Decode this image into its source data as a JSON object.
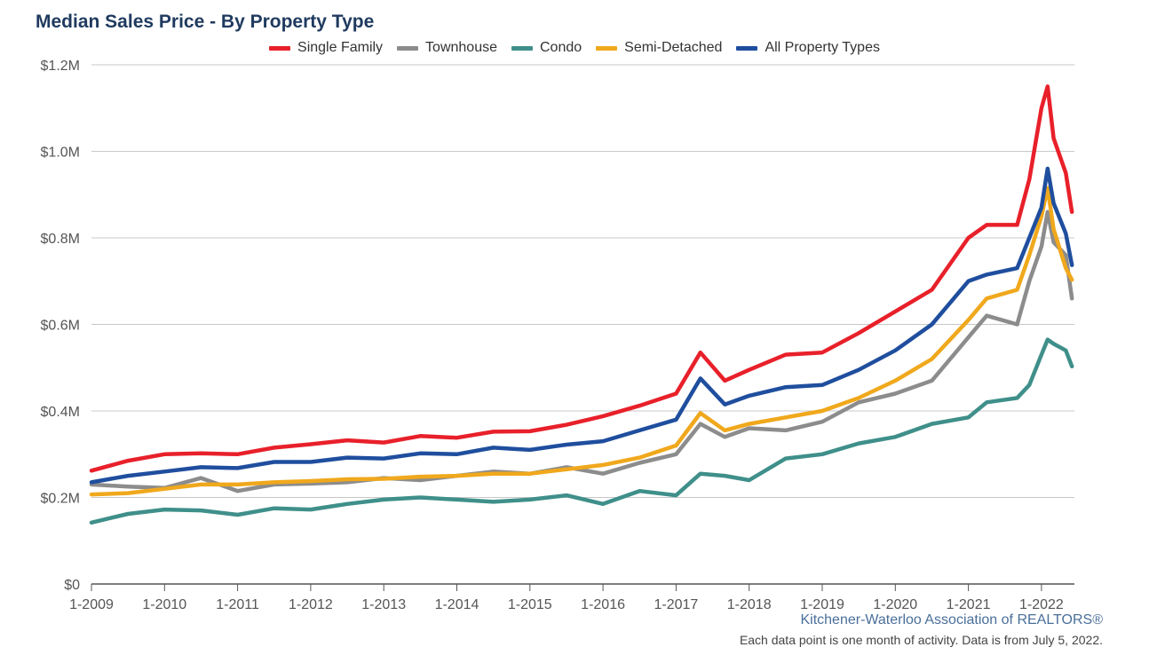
{
  "chart_data": {
    "type": "line",
    "title": "Median Sales Price - By Property Type",
    "y_ticks": [
      "$0",
      "$0.2M",
      "$0.4M",
      "$0.6M",
      "$0.8M",
      "$1.0M",
      "$1.2M"
    ],
    "y_tick_values": [
      0,
      200000,
      400000,
      600000,
      800000,
      1000000,
      1200000
    ],
    "ylim": [
      0,
      1200000
    ],
    "x_ticks": [
      "1-2009",
      "1-2010",
      "1-2011",
      "1-2012",
      "1-2013",
      "1-2014",
      "1-2015",
      "1-2016",
      "1-2017",
      "1-2018",
      "1-2019",
      "1-2020",
      "1-2021",
      "1-2022"
    ],
    "x_start": "2009-01",
    "x_end": "2022-06",
    "grid": true,
    "legend_position": "top",
    "series": [
      {
        "name": "Single Family",
        "color": "#e8202a",
        "points": [
          [
            "2009-01",
            262000
          ],
          [
            "2009-07",
            285000
          ],
          [
            "2010-01",
            300000
          ],
          [
            "2010-07",
            302000
          ],
          [
            "2011-01",
            300000
          ],
          [
            "2011-07",
            315000
          ],
          [
            "2012-01",
            323000
          ],
          [
            "2012-07",
            332000
          ],
          [
            "2013-01",
            327000
          ],
          [
            "2013-07",
            342000
          ],
          [
            "2014-01",
            338000
          ],
          [
            "2014-07",
            352000
          ],
          [
            "2015-01",
            353000
          ],
          [
            "2015-07",
            368000
          ],
          [
            "2016-01",
            388000
          ],
          [
            "2016-07",
            412000
          ],
          [
            "2017-01",
            440000
          ],
          [
            "2017-05",
            535000
          ],
          [
            "2017-09",
            470000
          ],
          [
            "2018-01",
            495000
          ],
          [
            "2018-07",
            530000
          ],
          [
            "2019-01",
            535000
          ],
          [
            "2019-07",
            580000
          ],
          [
            "2020-01",
            630000
          ],
          [
            "2020-07",
            680000
          ],
          [
            "2021-01",
            800000
          ],
          [
            "2021-04",
            830000
          ],
          [
            "2021-09",
            830000
          ],
          [
            "2021-11",
            935000
          ],
          [
            "2022-01",
            1100000
          ],
          [
            "2022-02",
            1150000
          ],
          [
            "2022-03",
            1030000
          ],
          [
            "2022-05",
            950000
          ],
          [
            "2022-06",
            860000
          ]
        ]
      },
      {
        "name": "Townhouse",
        "color": "#8c8c8c",
        "points": [
          [
            "2009-01",
            230000
          ],
          [
            "2009-07",
            225000
          ],
          [
            "2010-01",
            222000
          ],
          [
            "2010-07",
            245000
          ],
          [
            "2011-01",
            215000
          ],
          [
            "2011-07",
            230000
          ],
          [
            "2012-01",
            232000
          ],
          [
            "2012-07",
            235000
          ],
          [
            "2013-01",
            245000
          ],
          [
            "2013-07",
            240000
          ],
          [
            "2014-01",
            250000
          ],
          [
            "2014-07",
            260000
          ],
          [
            "2015-01",
            255000
          ],
          [
            "2015-07",
            270000
          ],
          [
            "2016-01",
            255000
          ],
          [
            "2016-07",
            280000
          ],
          [
            "2017-01",
            300000
          ],
          [
            "2017-05",
            370000
          ],
          [
            "2017-09",
            340000
          ],
          [
            "2018-01",
            360000
          ],
          [
            "2018-07",
            355000
          ],
          [
            "2019-01",
            375000
          ],
          [
            "2019-07",
            420000
          ],
          [
            "2020-01",
            440000
          ],
          [
            "2020-07",
            470000
          ],
          [
            "2021-01",
            570000
          ],
          [
            "2021-04",
            620000
          ],
          [
            "2021-09",
            600000
          ],
          [
            "2021-11",
            700000
          ],
          [
            "2022-01",
            780000
          ],
          [
            "2022-02",
            860000
          ],
          [
            "2022-03",
            790000
          ],
          [
            "2022-05",
            760000
          ],
          [
            "2022-06",
            660000
          ]
        ]
      },
      {
        "name": "Condo",
        "color": "#3f8f8a",
        "points": [
          [
            "2009-01",
            142000
          ],
          [
            "2009-07",
            162000
          ],
          [
            "2010-01",
            172000
          ],
          [
            "2010-07",
            170000
          ],
          [
            "2011-01",
            160000
          ],
          [
            "2011-07",
            175000
          ],
          [
            "2012-01",
            172000
          ],
          [
            "2012-07",
            185000
          ],
          [
            "2013-01",
            195000
          ],
          [
            "2013-07",
            200000
          ],
          [
            "2014-01",
            195000
          ],
          [
            "2014-07",
            190000
          ],
          [
            "2015-01",
            195000
          ],
          [
            "2015-07",
            205000
          ],
          [
            "2016-01",
            185000
          ],
          [
            "2016-07",
            215000
          ],
          [
            "2017-01",
            205000
          ],
          [
            "2017-05",
            255000
          ],
          [
            "2017-09",
            250000
          ],
          [
            "2018-01",
            240000
          ],
          [
            "2018-07",
            290000
          ],
          [
            "2019-01",
            300000
          ],
          [
            "2019-07",
            325000
          ],
          [
            "2020-01",
            340000
          ],
          [
            "2020-07",
            370000
          ],
          [
            "2021-01",
            385000
          ],
          [
            "2021-04",
            420000
          ],
          [
            "2021-09",
            430000
          ],
          [
            "2021-11",
            460000
          ],
          [
            "2022-01",
            530000
          ],
          [
            "2022-02",
            565000
          ],
          [
            "2022-03",
            555000
          ],
          [
            "2022-05",
            540000
          ],
          [
            "2022-06",
            503000
          ]
        ]
      },
      {
        "name": "Semi-Detached",
        "color": "#f0a81c",
        "points": [
          [
            "2009-01",
            207000
          ],
          [
            "2009-07",
            210000
          ],
          [
            "2010-01",
            220000
          ],
          [
            "2010-07",
            230000
          ],
          [
            "2011-01",
            230000
          ],
          [
            "2011-07",
            235000
          ],
          [
            "2012-01",
            238000
          ],
          [
            "2012-07",
            242000
          ],
          [
            "2013-01",
            243000
          ],
          [
            "2013-07",
            248000
          ],
          [
            "2014-01",
            250000
          ],
          [
            "2014-07",
            255000
          ],
          [
            "2015-01",
            255000
          ],
          [
            "2015-07",
            265000
          ],
          [
            "2016-01",
            275000
          ],
          [
            "2016-07",
            292000
          ],
          [
            "2017-01",
            320000
          ],
          [
            "2017-05",
            395000
          ],
          [
            "2017-09",
            355000
          ],
          [
            "2018-01",
            370000
          ],
          [
            "2018-07",
            385000
          ],
          [
            "2019-01",
            400000
          ],
          [
            "2019-07",
            430000
          ],
          [
            "2020-01",
            470000
          ],
          [
            "2020-07",
            520000
          ],
          [
            "2021-01",
            610000
          ],
          [
            "2021-04",
            660000
          ],
          [
            "2021-09",
            680000
          ],
          [
            "2021-11",
            760000
          ],
          [
            "2022-01",
            850000
          ],
          [
            "2022-02",
            915000
          ],
          [
            "2022-03",
            820000
          ],
          [
            "2022-05",
            730000
          ],
          [
            "2022-06",
            703000
          ]
        ]
      },
      {
        "name": "All Property Types",
        "color": "#1f4e9e",
        "points": [
          [
            "2009-01",
            235000
          ],
          [
            "2009-07",
            250000
          ],
          [
            "2010-01",
            260000
          ],
          [
            "2010-07",
            270000
          ],
          [
            "2011-01",
            268000
          ],
          [
            "2011-07",
            282000
          ],
          [
            "2012-01",
            282000
          ],
          [
            "2012-07",
            292000
          ],
          [
            "2013-01",
            290000
          ],
          [
            "2013-07",
            302000
          ],
          [
            "2014-01",
            300000
          ],
          [
            "2014-07",
            315000
          ],
          [
            "2015-01",
            310000
          ],
          [
            "2015-07",
            322000
          ],
          [
            "2016-01",
            330000
          ],
          [
            "2016-07",
            355000
          ],
          [
            "2017-01",
            380000
          ],
          [
            "2017-05",
            475000
          ],
          [
            "2017-09",
            415000
          ],
          [
            "2018-01",
            435000
          ],
          [
            "2018-07",
            455000
          ],
          [
            "2019-01",
            460000
          ],
          [
            "2019-07",
            495000
          ],
          [
            "2020-01",
            540000
          ],
          [
            "2020-07",
            600000
          ],
          [
            "2021-01",
            700000
          ],
          [
            "2021-04",
            715000
          ],
          [
            "2021-09",
            730000
          ],
          [
            "2021-11",
            800000
          ],
          [
            "2022-01",
            870000
          ],
          [
            "2022-02",
            960000
          ],
          [
            "2022-03",
            880000
          ],
          [
            "2022-05",
            810000
          ],
          [
            "2022-06",
            737000
          ]
        ]
      }
    ]
  },
  "footer": {
    "source": "Kitchener-Waterloo Association of REALTORS®",
    "note": "Each data point is one month of activity. Data is from July 5, 2022."
  }
}
